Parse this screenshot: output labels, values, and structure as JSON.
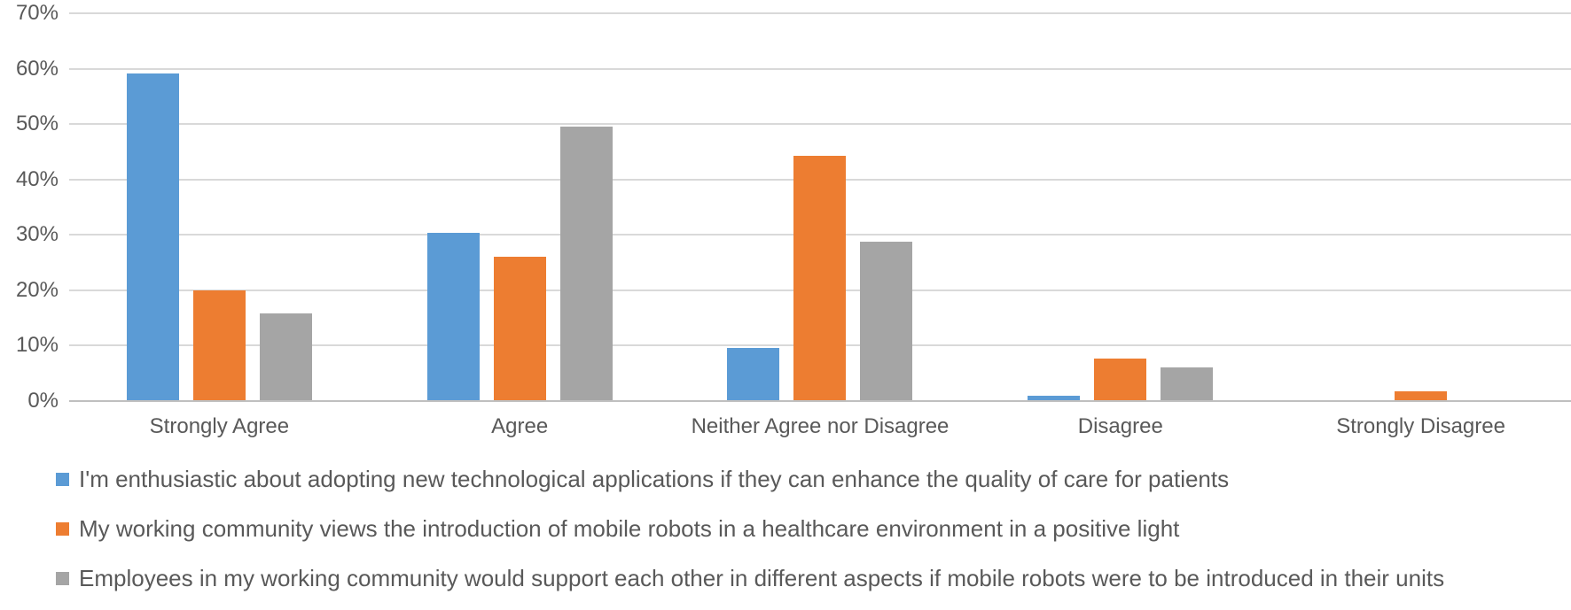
{
  "chart_data": {
    "type": "bar",
    "title": "",
    "categories": [
      "Strongly Agree",
      "Agree",
      "Neither Agree nor Disagree",
      "Disagree",
      "Strongly Disagree"
    ],
    "series": [
      {
        "name": "I'm enthusiastic about adopting new technological applications if they can enhance the quality of care for patients",
        "color": "#5B9BD5",
        "values": [
          59.2,
          30.4,
          9.6,
          1.0,
          0
        ]
      },
      {
        "name": "My working community views the introduction of mobile robots in a healthcare environment in a positive light",
        "color": "#ED7D31",
        "values": [
          20.0,
          26.0,
          44.2,
          7.7,
          1.8
        ]
      },
      {
        "name": "Employees in my working community would support each other in different aspects if mobile robots were to be introduced in their units",
        "color": "#A5A5A5",
        "values": [
          15.8,
          49.6,
          28.8,
          6.0,
          0
        ]
      }
    ],
    "y_axis": {
      "min": 0,
      "max": 70,
      "step": 10,
      "unit": "%",
      "tick_labels": [
        "0%",
        "10%",
        "20%",
        "30%",
        "40%",
        "50%",
        "60%",
        "70%"
      ]
    },
    "grid": true,
    "legend_position": "bottom-left"
  },
  "style": {
    "gridline_color": "#D9D9D9",
    "axis_line_color": "#BFBFBF",
    "text_color": "#595959",
    "background": "#FFFFFF"
  }
}
